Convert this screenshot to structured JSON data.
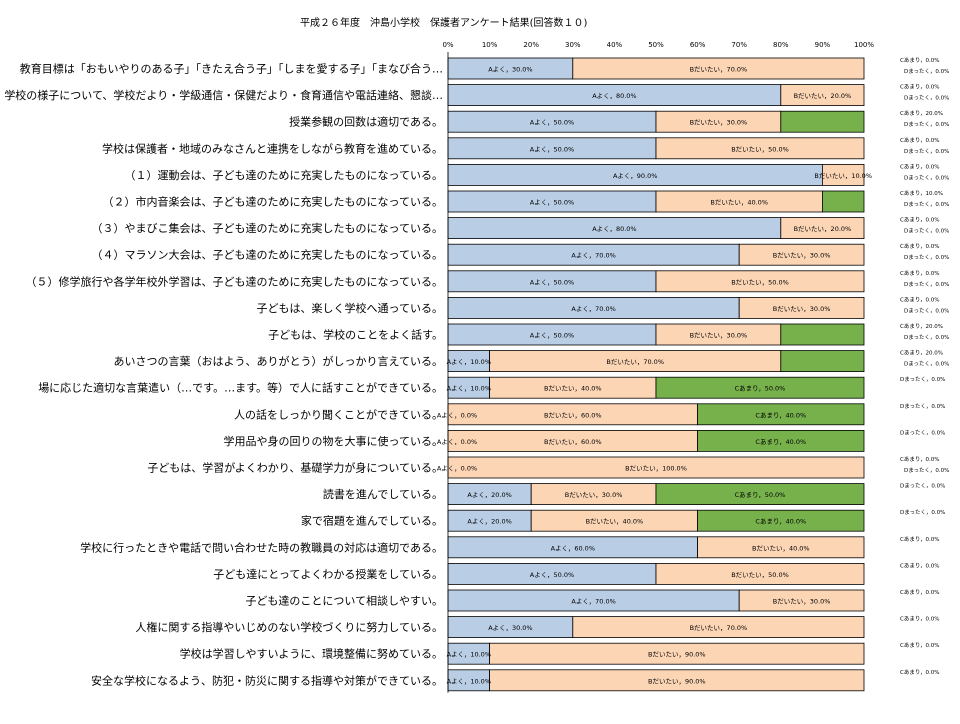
{
  "chart_data": {
    "type": "bar",
    "orientation": "horizontal",
    "stacked": "percent",
    "title": "平成２６年度　沖島小学校　保護者アンケート結果(回答数１０)",
    "xlim": [
      0,
      100
    ],
    "x_ticks": [
      "0%",
      "10%",
      "20%",
      "30%",
      "40%",
      "50%",
      "60%",
      "70%",
      "80%",
      "90%",
      "100%"
    ],
    "grid": false,
    "legend": "none",
    "categories": [
      "教育目標は「おもいやりのある子」「きたえ合う子」「しまを愛する子」「まなび合う…",
      "学校の様子について、学校だより・学級通信・保健だより・食育通信や電話連絡、懇談…",
      "授業参観の回数は適切である。",
      "学校は保護者・地域のみなさんと連携をしながら教育を進めている。",
      "（１）運動会は、子ども達のために充実したものになっている。",
      "（２）市内音楽会は、子ども達のために充実したものになっている。",
      "（３）やまびこ集会は、子ども達のために充実したものになっている。",
      "（４）マラソン大会は、子ども達のために充実したものになっている。",
      "（５）修学旅行や各学年校外学習は、子ども達のために充実したものになっている。",
      "子どもは、楽しく学校へ通っている。",
      "子どもは、学校のことをよく話す。",
      "あいさつの言葉（おはよう、ありがとう）がしっかり言えている。",
      "場に応じた適切な言葉遣い（…です。…ます。等）で人に話すことができている。",
      "人の話をしっかり聞くことができている。",
      "学用品や身の回りの物を大事に使っている。",
      "子どもは、学習がよくわかり、基礎学力が身についている。",
      "読書を進んでしている。",
      "家で宿題を進んでしている。",
      "学校に行ったときや電話で問い合わせた時の教職員の対応は適切である。",
      "子ども達にとってよくわかる授業をしている。",
      "子ども達のことについて相談しやすい。",
      "人権に関する指導やいじめのない学校づくりに努力している。",
      "学校は学習しやすいように、環境整備に努めている。",
      "安全な学校になるよう、防犯・防災に関する指導や対策ができている。"
    ],
    "series": [
      {
        "name": "Aよく",
        "color": "#b9cde5",
        "values": [
          30,
          80,
          50,
          50,
          90,
          50,
          80,
          70,
          50,
          70,
          50,
          10,
          10,
          0,
          0,
          0,
          20,
          20,
          60,
          50,
          70,
          30,
          10,
          10
        ]
      },
      {
        "name": "Bだいたい",
        "color": "#fcd5b5",
        "values": [
          70,
          20,
          30,
          50,
          10,
          40,
          20,
          30,
          50,
          30,
          30,
          70,
          40,
          60,
          60,
          100,
          30,
          40,
          40,
          50,
          30,
          70,
          90,
          90
        ]
      },
      {
        "name": "Cあまり",
        "color": "#77b14c",
        "values": [
          0,
          0,
          20,
          0,
          0,
          10,
          0,
          0,
          0,
          0,
          20,
          20,
          50,
          40,
          40,
          0,
          50,
          40,
          0,
          0,
          0,
          0,
          0,
          0
        ]
      },
      {
        "name": "Dまったく",
        "color": "#ffffff",
        "values": [
          0,
          0,
          0,
          0,
          0,
          0,
          0,
          0,
          0,
          0,
          0,
          0,
          0,
          0,
          0,
          0,
          0,
          0,
          0,
          0,
          0,
          0,
          0,
          0
        ]
      }
    ],
    "segment_labels": [
      [
        "Aよく，30.0%",
        "Bだいたい，70.0%"
      ],
      [
        "Aよく，80.0%",
        "Bだいたい，20.0%"
      ],
      [
        "Aよく，50.0%",
        "Bだいたい，30.0%"
      ],
      [
        "Aよく，50.0%",
        "Bだいたい，50.0%"
      ],
      [
        "Aよく，90.0%",
        "Bだいたい，10.0%"
      ],
      [
        "Aよく，50.0%",
        "Bだいたい，40.0%"
      ],
      [
        "Aよく，80.0%",
        "Bだいたい，20.0%"
      ],
      [
        "Aよく，70.0%",
        "Bだいたい，30.0%"
      ],
      [
        "Aよく，50.0%",
        "Bだいたい，50.0%"
      ],
      [
        "Aよく，70.0%",
        "Bだいたい，30.0%"
      ],
      [
        "Aよく，50.0%",
        "Bだいたい，30.0%"
      ],
      [
        "Aよく，10.0%",
        "Bだいたい，70.0%"
      ],
      [
        "Aよく，10.0%",
        "Bだいたい，40.0%",
        "Cあまり，50.0%"
      ],
      [
        "Aよく，0.0%",
        "Bだいたい，60.0%",
        "Cあまり，40.0%"
      ],
      [
        "Aよく，0.0%",
        "Bだいたい，60.0%",
        "Cあまり，40.0%"
      ],
      [
        "Aよく，0.0%",
        "Bだいたい，100.0%"
      ],
      [
        "Aよく，20.0%",
        "Bだいたい，30.0%",
        "Cあまり，50.0%"
      ],
      [
        "Aよく，20.0%",
        "Bだいたい，40.0%",
        "Cあまり，40.0%"
      ],
      [
        "Aよく，60.0%",
        "Bだいたい，40.0%"
      ],
      [
        "Aよく，50.0%",
        "Bだいたい，50.0%"
      ],
      [
        "Aよく，70.0%",
        "Bだいたい，30.0%"
      ],
      [
        "Aよく，30.0%",
        "Bだいたい，70.0%"
      ],
      [
        "Aよく，10.0%",
        "Bだいたい，90.0%"
      ],
      [
        "Aよく，10.0%",
        "Bだいたい，90.0%"
      ]
    ],
    "side_labels": [
      [
        "Cあまり，0.0%",
        "Dまったく，0.0%"
      ],
      [
        "Cあまり，0.0%",
        "Dまったく，0.0%"
      ],
      [
        "Cあまり，20.0%",
        "Dまったく，0.0%"
      ],
      [
        "Cあまり，0.0%",
        "Dまったく，0.0%"
      ],
      [
        "Cあまり，0.0%",
        "Dまったく，0.0%"
      ],
      [
        "Cあまり，10.0%",
        "Dまったく，0.0%"
      ],
      [
        "Cあまり，0.0%",
        "Dまったく，0.0%"
      ],
      [
        "Cあまり，0.0%",
        "Dまったく，0.0%"
      ],
      [
        "Cあまり，0.0%",
        "Dまったく，0.0%"
      ],
      [
        "Cあまり，0.0%",
        "Dまったく，0.0%"
      ],
      [
        "Cあまり，20.0%",
        "Dまったく，0.0%"
      ],
      [
        "Cあまり，20.0%",
        "Dまったく，0.0%"
      ],
      [
        "Dまったく，0.0%"
      ],
      [
        "Dまったく，0.0%"
      ],
      [
        "Dまったく，0.0%"
      ],
      [
        "Cあまり，0.0%",
        "Dまったく，0.0%"
      ],
      [
        "Dまったく，0.0%"
      ],
      [
        "Dまったく，0.0%"
      ],
      [
        "Cあまり，0.0%"
      ],
      [
        "Cあまり，0.0%"
      ],
      [
        "Cあまり，0.0%"
      ],
      [
        "Cあまり，0.0%"
      ],
      [
        "Cあまり，0.0%"
      ],
      [
        "Cあまり，0.0%"
      ]
    ]
  }
}
